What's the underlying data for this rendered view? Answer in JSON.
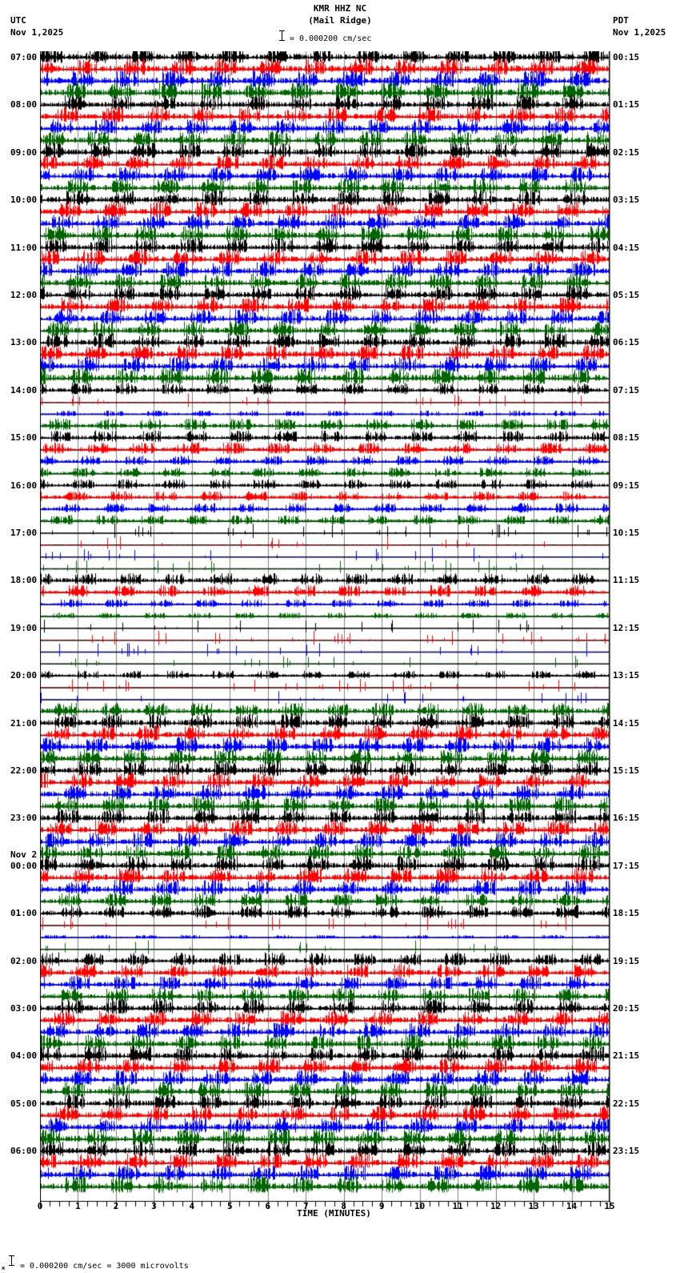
{
  "header": {
    "station": "KMR HHZ NC",
    "location": "(Mail Ridge)",
    "scale_text": "= 0.000200 cm/sec",
    "left_tz": "UTC",
    "left_date": "Nov 1,2025",
    "right_tz": "PDT",
    "right_date": "Nov 1,2025"
  },
  "footer": {
    "xlabel": "TIME (MINUTES)",
    "calibration_prefix": "ж",
    "calibration_text": "= 0.000200 cm/sec =    3000 microvolts"
  },
  "chart_data": {
    "type": "line",
    "title": "KMR HHZ NC (Mail Ridge)",
    "subtitle": "Helicorder seismogram, 24 hours, 15-minute lines",
    "xlabel": "TIME (MINUTES)",
    "ylabel_left": "UTC",
    "ylabel_right": "PDT",
    "x_ticks": [
      0,
      1,
      2,
      3,
      4,
      5,
      6,
      7,
      8,
      9,
      10,
      11,
      12,
      13,
      14,
      15
    ],
    "xlim": [
      0,
      15
    ],
    "minor_ticks_per_minute": 4,
    "trace_colors": [
      "#000000",
      "#ff0000",
      "#0000ff",
      "#006400"
    ],
    "grid_color": "#808080",
    "utc_labels": [
      "07:00",
      "08:00",
      "09:00",
      "10:00",
      "11:00",
      "12:00",
      "13:00",
      "14:00",
      "15:00",
      "16:00",
      "17:00",
      "18:00",
      "19:00",
      "20:00",
      "21:00",
      "22:00",
      "23:00",
      "00:00",
      "01:00",
      "02:00",
      "03:00",
      "04:00",
      "05:00",
      "06:00"
    ],
    "utc_date_change": {
      "index": 17,
      "label": "Nov 2"
    },
    "pdt_labels": [
      "00:15",
      "01:15",
      "02:15",
      "03:15",
      "04:15",
      "05:15",
      "06:15",
      "07:15",
      "08:15",
      "09:15",
      "10:15",
      "11:15",
      "12:15",
      "13:15",
      "14:15",
      "15:15",
      "16:15",
      "17:15",
      "18:15",
      "19:15",
      "20:15",
      "21:15",
      "22:15",
      "23:15"
    ],
    "scale": "0.000200 cm/sec = 3000 microvolts",
    "activity_per_trace": [
      [
        9,
        9,
        9,
        9
      ],
      [
        8,
        8,
        8,
        8
      ],
      [
        8,
        8,
        8,
        8
      ],
      [
        8,
        8,
        8,
        8
      ],
      [
        8,
        8,
        8,
        8
      ],
      [
        8,
        8,
        8,
        8
      ],
      [
        8,
        8,
        8,
        9
      ],
      [
        6,
        1,
        3,
        6
      ],
      [
        6,
        6,
        5,
        5
      ],
      [
        5,
        5,
        5,
        5
      ],
      [
        1,
        1,
        1,
        1
      ],
      [
        6,
        6,
        4,
        3
      ],
      [
        1,
        1,
        1,
        1
      ],
      [
        4,
        1,
        1,
        7
      ],
      [
        8,
        8,
        8,
        8
      ],
      [
        8,
        8,
        8,
        8
      ],
      [
        8,
        8,
        8,
        8
      ],
      [
        8,
        8,
        8,
        7
      ],
      [
        7,
        1,
        2,
        1
      ],
      [
        7,
        7,
        7,
        7
      ],
      [
        8,
        8,
        8,
        8
      ],
      [
        8,
        8,
        8,
        8
      ],
      [
        8,
        8,
        8,
        9
      ],
      [
        8,
        8,
        8,
        9
      ]
    ]
  }
}
